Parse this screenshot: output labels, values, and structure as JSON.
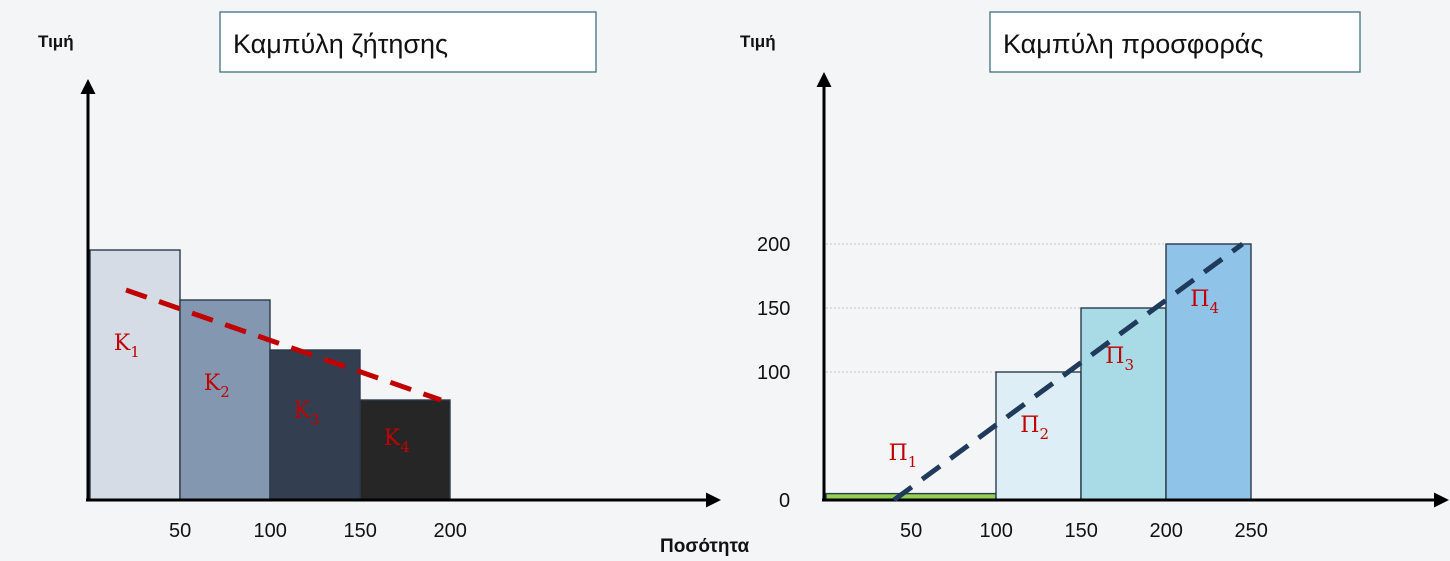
{
  "chart_data": [
    {
      "type": "bar",
      "title": "Καμπύλη ζήτησης",
      "ylabel": "Τιμή",
      "xlabel": "",
      "x_ticks": [
        "50",
        "100",
        "150",
        "200"
      ],
      "bars": [
        {
          "label": "K",
          "sub": "1",
          "x0": 0,
          "x1": 50,
          "value": 250,
          "color": "#d6dce5"
        },
        {
          "label": "K",
          "sub": "2",
          "x0": 50,
          "x1": 100,
          "value": 200,
          "color": "#8497b0"
        },
        {
          "label": "K",
          "sub": "3",
          "x0": 100,
          "x1": 150,
          "value": 150,
          "color": "#333f50"
        },
        {
          "label": "K",
          "sub": "4",
          "x0": 150,
          "x1": 200,
          "value": 100,
          "color": "#262626"
        }
      ],
      "trend": {
        "color": "#c00000",
        "from": [
          20,
          210
        ],
        "to": [
          195,
          100
        ]
      },
      "xlim": [
        0,
        350
      ],
      "ylim": [
        0,
        300
      ]
    },
    {
      "type": "bar",
      "title": "Καμπύλη προσφοράς",
      "ylabel": "Τιμή",
      "xlabel": "Ποσότητα",
      "x_ticks": [
        "50",
        "100",
        "150",
        "200",
        "250"
      ],
      "y_ticks": [
        "0",
        "100",
        "150",
        "200"
      ],
      "bars": [
        {
          "label": "Π",
          "sub": "1",
          "x0": 0,
          "x1": 100,
          "value": 5,
          "color": "#92d050"
        },
        {
          "label": "Π",
          "sub": "2",
          "x0": 100,
          "x1": 150,
          "value": 100,
          "color": "#deeef6"
        },
        {
          "label": "Π",
          "sub": "3",
          "x0": 150,
          "x1": 200,
          "value": 150,
          "color": "#a9dbe6"
        },
        {
          "label": "Π",
          "sub": "4",
          "x0": 200,
          "x1": 250,
          "value": 200,
          "color": "#8fc3e8"
        }
      ],
      "trend": {
        "color": "#1f3a5a",
        "from": [
          40,
          0
        ],
        "to": [
          245,
          200
        ]
      },
      "xlim": [
        0,
        350
      ],
      "ylim": [
        0,
        300
      ]
    }
  ]
}
